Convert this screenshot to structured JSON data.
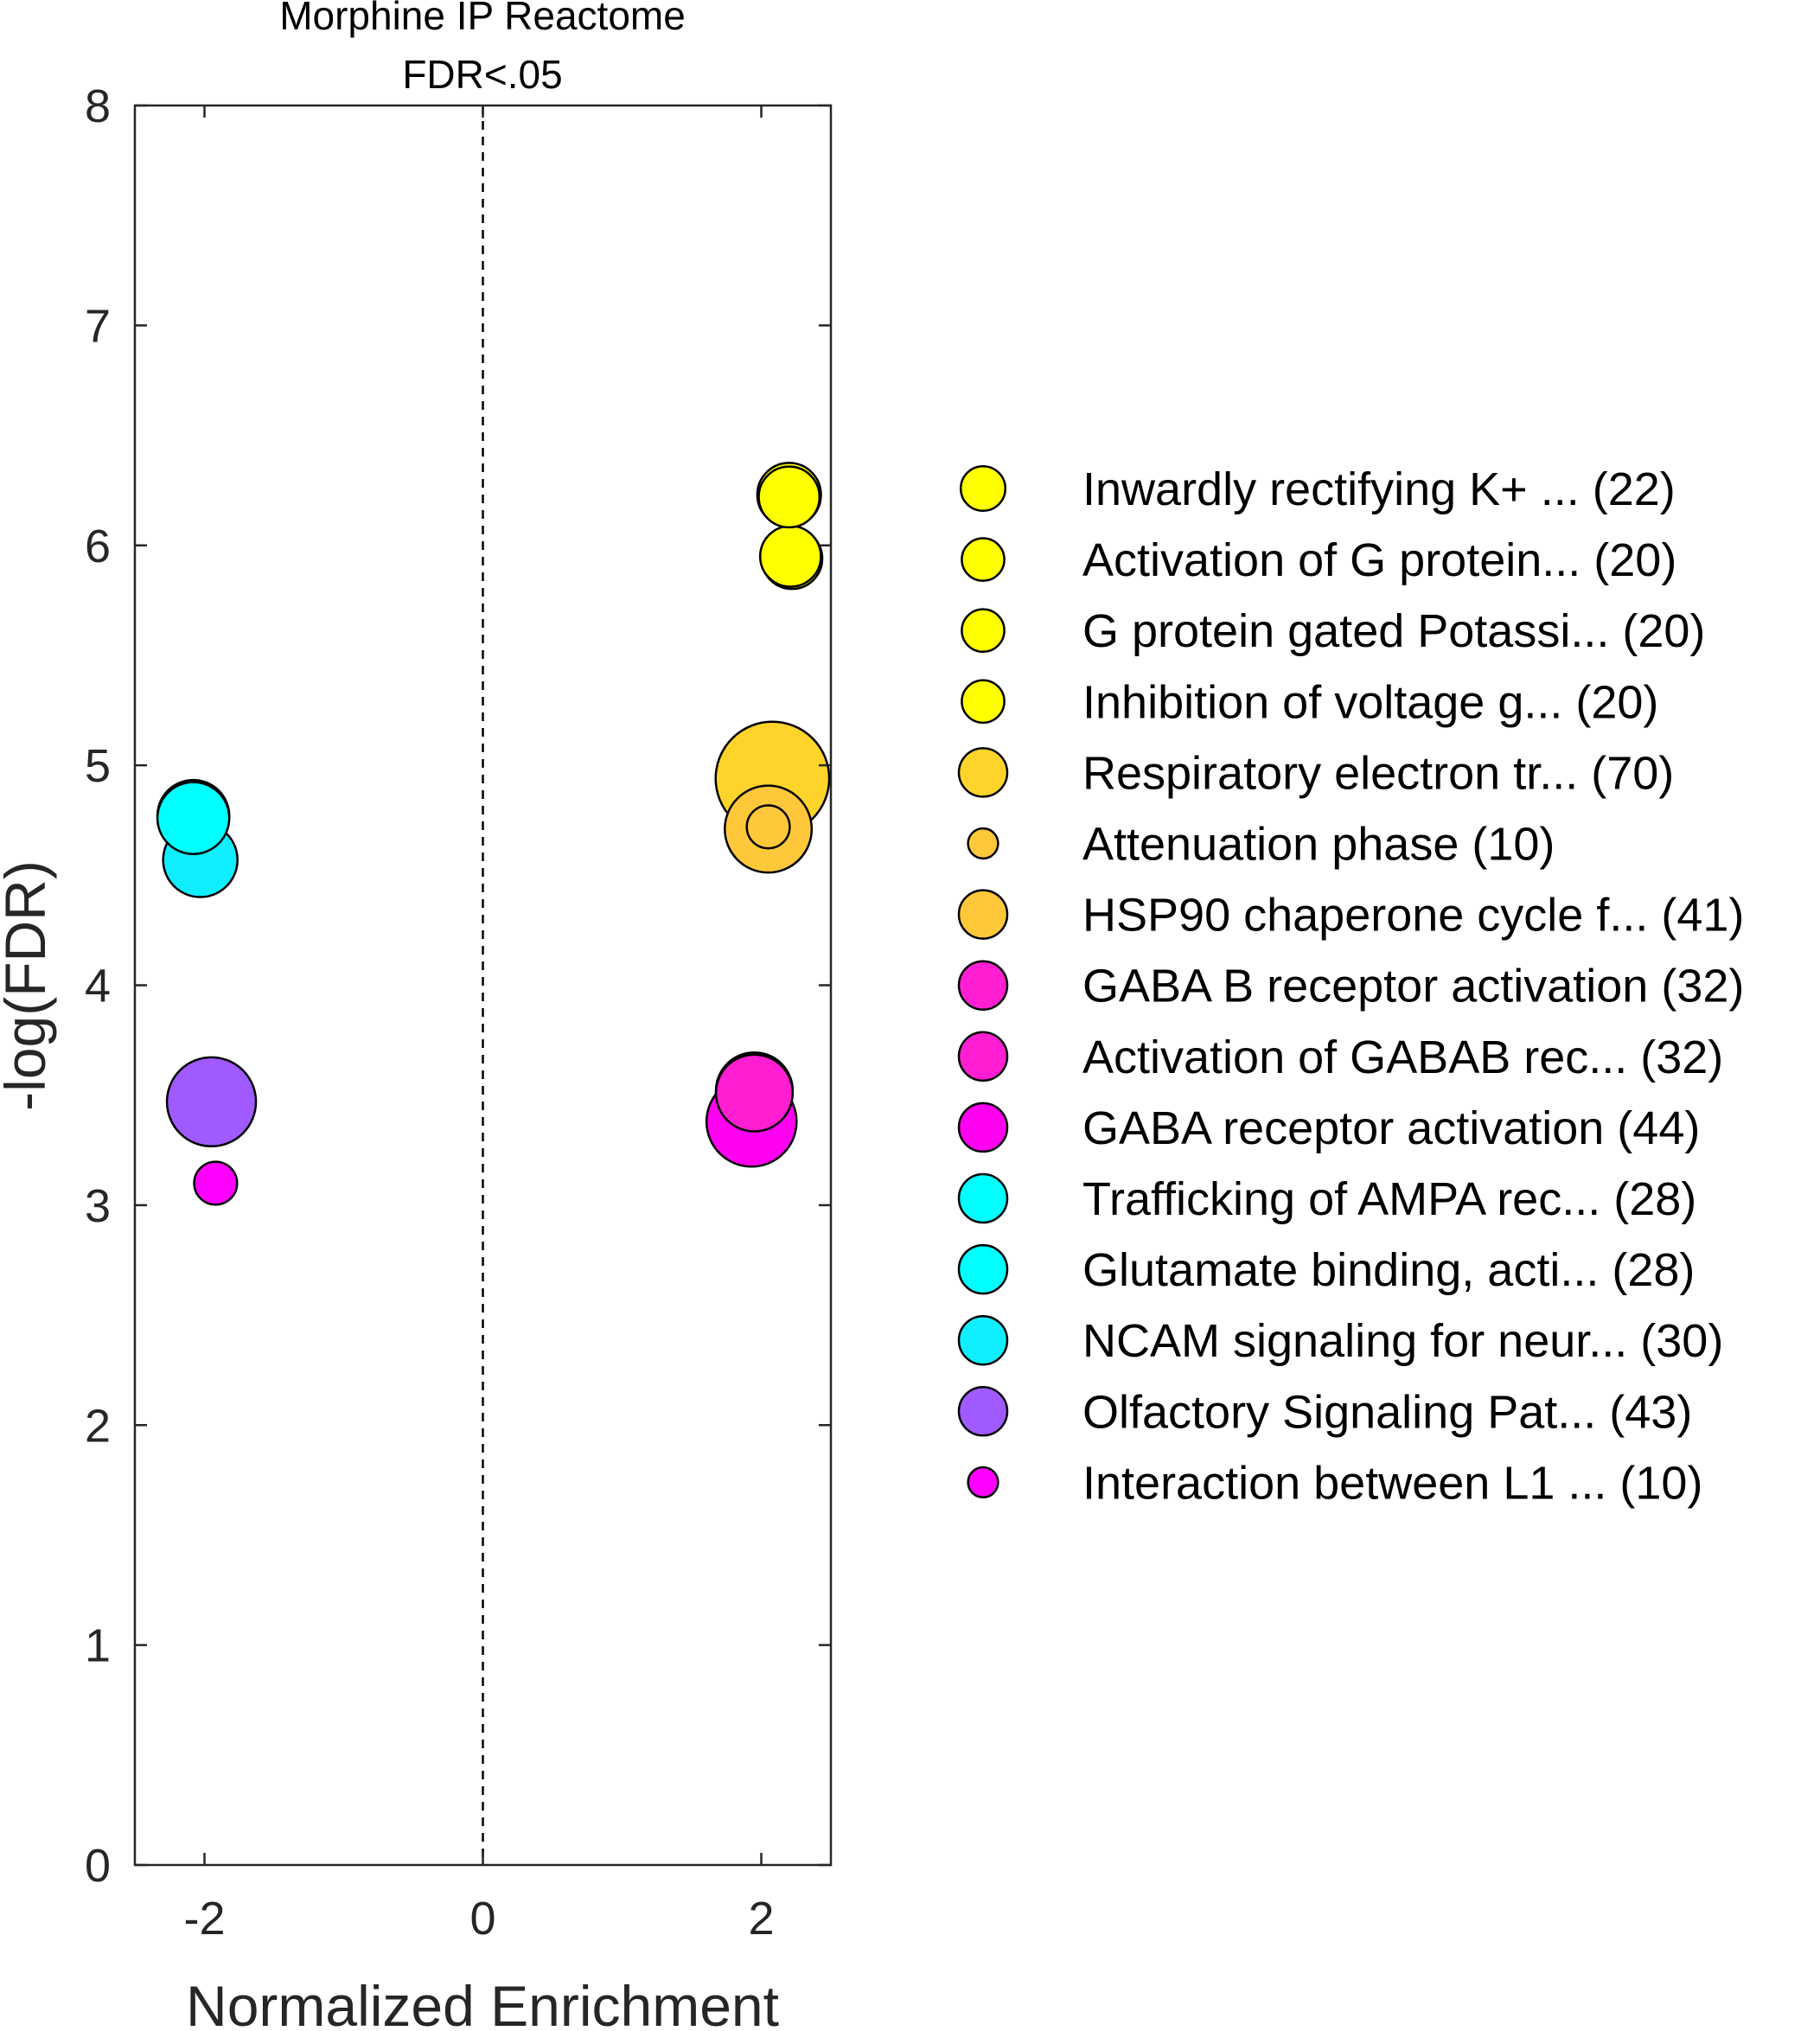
{
  "chart_data": {
    "type": "scatter",
    "title": [
      "Morphine IP Reactome",
      "FDR<.05"
    ],
    "xlabel": "Normalized Enrichment",
    "ylabel": "-log(FDR)",
    "xlim": [
      -2.5,
      2.5
    ],
    "ylim": [
      0,
      8
    ],
    "xticks": [
      -2,
      0,
      2
    ],
    "xtick_labels": [
      "-2",
      "0",
      "2"
    ],
    "yticks": [
      0,
      1,
      2,
      3,
      4,
      5,
      6,
      7,
      8
    ],
    "ytick_labels": [
      "0",
      "1",
      "2",
      "3",
      "4",
      "5",
      "6",
      "7",
      "8"
    ],
    "reference_line": {
      "x": 0,
      "style": "dashed"
    },
    "grid": false,
    "legend_position": "right",
    "size_encoding": "gene set size",
    "series": [
      {
        "name": "Inwardly rectifying K+ ... (22)",
        "size": 22,
        "x": 2.2,
        "y": 6.23,
        "color": "#FFFF00"
      },
      {
        "name": "Activation of G protein... (20)",
        "size": 20,
        "x": 2.22,
        "y": 5.94,
        "color": "#FFFF00"
      },
      {
        "name": "G protein gated Potassi... (20)",
        "size": 20,
        "x": 2.21,
        "y": 5.95,
        "color": "#FFFF00"
      },
      {
        "name": "Inhibition of voltage g... (20)",
        "size": 20,
        "x": 2.2,
        "y": 6.22,
        "color": "#FFFF00"
      },
      {
        "name": "Respiratory electron tr... (70)",
        "size": 70,
        "x": 2.08,
        "y": 4.94,
        "color": "#FFD42A"
      },
      {
        "name": "Attenuation phase (10)",
        "size": 10,
        "x": 2.05,
        "y": 4.72,
        "color": "#FFC83A"
      },
      {
        "name": "HSP90 chaperone cycle f... (41)",
        "size": 41,
        "x": 2.05,
        "y": 4.71,
        "color": "#FFC83A"
      },
      {
        "name": "GABA B receptor activation (32)",
        "size": 32,
        "x": 1.95,
        "y": 3.52,
        "color": "#FF1ED2"
      },
      {
        "name": "Activation of GABAB rec... (32)",
        "size": 32,
        "x": 1.95,
        "y": 3.51,
        "color": "#FF1ED2"
      },
      {
        "name": "GABA receptor activation (44)",
        "size": 44,
        "x": 1.93,
        "y": 3.38,
        "color": "#FF00F0"
      },
      {
        "name": "Trafficking of AMPA rec... (28)",
        "size": 28,
        "x": -2.08,
        "y": 4.77,
        "color": "#00FFFF"
      },
      {
        "name": "Glutamate binding, acti... (28)",
        "size": 28,
        "x": -2.08,
        "y": 4.76,
        "color": "#00FFFF"
      },
      {
        "name": "NCAM signaling for neur... (30)",
        "size": 30,
        "x": -2.03,
        "y": 4.57,
        "color": "#0FEEFF"
      },
      {
        "name": "Olfactory Signaling Pat... (43)",
        "size": 43,
        "x": -1.95,
        "y": 3.47,
        "color": "#A05AFF"
      },
      {
        "name": "Interaction between L1 ... (10)",
        "size": 10,
        "x": -1.92,
        "y": 3.1,
        "color": "#FF00FF"
      }
    ]
  }
}
